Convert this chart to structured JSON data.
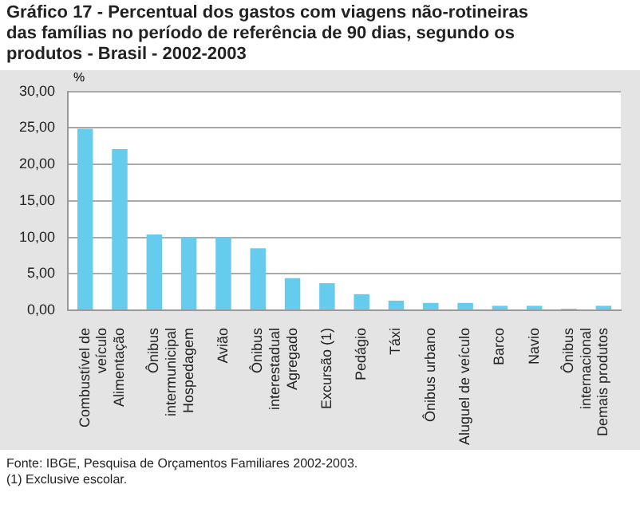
{
  "chart_data": {
    "type": "bar",
    "title": "Gráfico 17 - Percentual dos gastos com viagens não-rotineiras das famílias no período de referência de 90 dias, segundo os produtos - Brasil - 2002-2003",
    "ylabel": "%",
    "categories": [
      "Combustível de\nveículo",
      "Alimentação",
      "Ônibus\nintermunicipal",
      "Hospedagem",
      "Avião",
      "Ônibus\ninterestadual",
      "Agregado",
      "Excursão (1)",
      "Pedágio",
      "Táxi",
      "Ônibus urbano",
      "Aluguel de veículo",
      "Barco",
      "Navio",
      "Ônibus\ninternacional",
      "Demais produtos"
    ],
    "values": [
      24.9,
      22.1,
      10.4,
      10.0,
      10.0,
      8.5,
      4.4,
      3.7,
      2.2,
      1.3,
      1.0,
      1.0,
      0.6,
      0.6,
      0.2,
      0.6
    ],
    "color": "#66ccee",
    "ylim": [
      0,
      30
    ],
    "yticks": [
      {
        "value": 0,
        "label": "0,00"
      },
      {
        "value": 5,
        "label": "5,00"
      },
      {
        "value": 10,
        "label": "10,00"
      },
      {
        "value": 15,
        "label": "15,00"
      },
      {
        "value": 20,
        "label": "20,00"
      },
      {
        "value": 25,
        "label": "25,00"
      },
      {
        "value": 30,
        "label": "30,00"
      }
    ],
    "grid": "y",
    "annotations": [
      "Fonte: IBGE, Pesquisa de Orçamentos Familiares 2002-2003.",
      "(1) Exclusive escolar."
    ]
  }
}
